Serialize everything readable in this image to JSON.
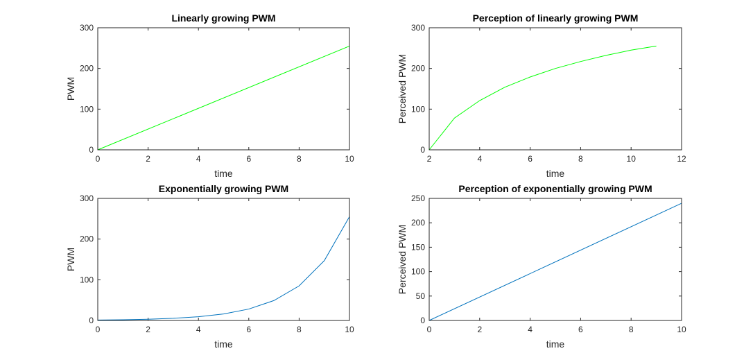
{
  "chart_data": [
    {
      "type": "line",
      "title": "Linearly growing PWM",
      "xlabel": "time",
      "ylabel": "PWM",
      "xlim": [
        0,
        10
      ],
      "ylim": [
        0,
        300
      ],
      "xticks": [
        0,
        2,
        4,
        6,
        8,
        10
      ],
      "yticks": [
        0,
        100,
        200,
        300
      ],
      "grid": false,
      "color": "#00ff00",
      "series": [
        {
          "x": [
            0,
            10
          ],
          "y": [
            0,
            255
          ]
        }
      ]
    },
    {
      "type": "line",
      "title": "Perception of linearly growing PWM",
      "xlabel": "time",
      "ylabel": "Perceived PWM",
      "xlim": [
        2,
        12
      ],
      "ylim": [
        0,
        300
      ],
      "xticks": [
        2,
        4,
        6,
        8,
        10,
        12
      ],
      "yticks": [
        0,
        100,
        200,
        300
      ],
      "grid": false,
      "color": "#00ff00",
      "series": [
        {
          "x": [
            2,
            3,
            4,
            5,
            6,
            7,
            8,
            9,
            10,
            11
          ],
          "y": [
            0,
            78,
            121,
            154,
            179,
            200,
            217,
            232,
            245,
            255
          ]
        }
      ]
    },
    {
      "type": "line",
      "title": "Exponentially growing PWM",
      "xlabel": "time",
      "ylabel": "PWM",
      "xlim": [
        0,
        10
      ],
      "ylim": [
        0,
        300
      ],
      "xticks": [
        0,
        2,
        4,
        6,
        8,
        10
      ],
      "yticks": [
        0,
        100,
        200,
        300
      ],
      "grid": false,
      "color": "#0072bd",
      "series": [
        {
          "x": [
            0,
            1,
            2,
            3,
            4,
            5,
            6,
            7,
            8,
            9,
            10
          ],
          "y": [
            1,
            1.7,
            3,
            5.3,
            9.2,
            16,
            28,
            49,
            85,
            147,
            255
          ]
        }
      ]
    },
    {
      "type": "line",
      "title": "Perception of exponentially growing PWM",
      "xlabel": "time",
      "ylabel": "Perceived PWM",
      "xlim": [
        0,
        10
      ],
      "ylim": [
        0,
        250
      ],
      "xticks": [
        0,
        2,
        4,
        6,
        8,
        10
      ],
      "yticks": [
        0,
        50,
        100,
        150,
        200,
        250
      ],
      "grid": false,
      "color": "#0072bd",
      "series": [
        {
          "x": [
            0,
            10
          ],
          "y": [
            0,
            240
          ]
        }
      ]
    }
  ]
}
